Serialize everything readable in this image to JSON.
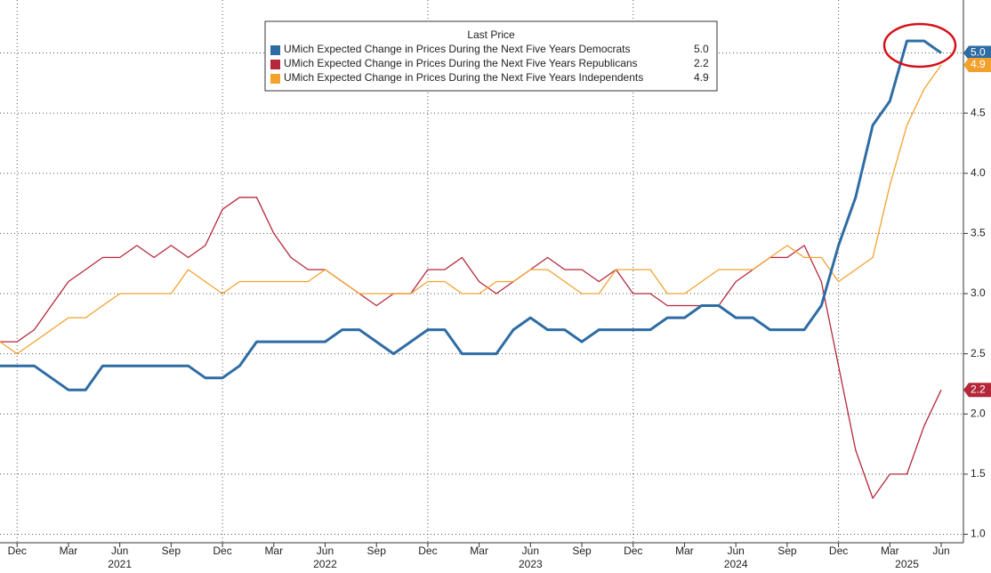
{
  "chart_data": {
    "type": "line",
    "legend_title": "Last Price",
    "legend_position": "top-center",
    "x": [
      "2020-11",
      "2020-12",
      "2021-01",
      "2021-02",
      "2021-03",
      "2021-04",
      "2021-05",
      "2021-06",
      "2021-07",
      "2021-08",
      "2021-09",
      "2021-10",
      "2021-11",
      "2021-12",
      "2022-01",
      "2022-02",
      "2022-03",
      "2022-04",
      "2022-05",
      "2022-06",
      "2022-07",
      "2022-08",
      "2022-09",
      "2022-10",
      "2022-11",
      "2022-12",
      "2023-01",
      "2023-02",
      "2023-03",
      "2023-04",
      "2023-05",
      "2023-06",
      "2023-07",
      "2023-08",
      "2023-09",
      "2023-10",
      "2023-11",
      "2023-12",
      "2024-01",
      "2024-02",
      "2024-03",
      "2024-04",
      "2024-05",
      "2024-06",
      "2024-07",
      "2024-08",
      "2024-09",
      "2024-10",
      "2024-11",
      "2024-12",
      "2025-01",
      "2025-02",
      "2025-03",
      "2025-04",
      "2025-05",
      "2025-06"
    ],
    "series": [
      {
        "name": "UMich Expected Change in Prices During the Next Five Years Democrats",
        "color": "#2e6ca4",
        "width": 3,
        "last_label": "5.0",
        "values": [
          2.4,
          2.4,
          2.4,
          2.3,
          2.2,
          2.2,
          2.4,
          2.4,
          2.4,
          2.4,
          2.4,
          2.4,
          2.3,
          2.3,
          2.4,
          2.6,
          2.6,
          2.6,
          2.6,
          2.6,
          2.7,
          2.7,
          2.6,
          2.5,
          2.6,
          2.7,
          2.7,
          2.5,
          2.5,
          2.5,
          2.7,
          2.8,
          2.7,
          2.7,
          2.6,
          2.7,
          2.7,
          2.7,
          2.7,
          2.8,
          2.8,
          2.9,
          2.9,
          2.8,
          2.8,
          2.7,
          2.7,
          2.7,
          2.9,
          3.4,
          3.8,
          4.4,
          4.6,
          5.1,
          5.1,
          5.0
        ]
      },
      {
        "name": "UMich Expected Change in Prices During the Next Five Years Republicans",
        "color": "#b5283a",
        "width": 1.3,
        "last_label": "2.2",
        "values": [
          2.6,
          2.6,
          2.7,
          2.9,
          3.1,
          3.2,
          3.3,
          3.3,
          3.4,
          3.3,
          3.4,
          3.3,
          3.4,
          3.7,
          3.8,
          3.8,
          3.5,
          3.3,
          3.2,
          3.2,
          3.1,
          3.0,
          2.9,
          3.0,
          3.0,
          3.2,
          3.2,
          3.3,
          3.1,
          3.0,
          3.1,
          3.2,
          3.3,
          3.2,
          3.2,
          3.1,
          3.2,
          3.0,
          3.0,
          2.9,
          2.9,
          2.9,
          2.9,
          3.1,
          3.2,
          3.3,
          3.3,
          3.4,
          3.1,
          2.4,
          1.7,
          1.3,
          1.5,
          1.5,
          1.9,
          2.2
        ]
      },
      {
        "name": "UMich Expected Change in Prices During the Next Five Years Independents",
        "color": "#f2a22c",
        "width": 1.3,
        "last_label": "4.9",
        "values": [
          2.6,
          2.5,
          2.6,
          2.7,
          2.8,
          2.8,
          2.9,
          3.0,
          3.0,
          3.0,
          3.0,
          3.2,
          3.1,
          3.0,
          3.1,
          3.1,
          3.1,
          3.1,
          3.1,
          3.2,
          3.1,
          3.0,
          3.0,
          3.0,
          3.0,
          3.1,
          3.1,
          3.0,
          3.0,
          3.1,
          3.1,
          3.2,
          3.2,
          3.1,
          3.0,
          3.0,
          3.2,
          3.2,
          3.2,
          3.0,
          3.0,
          3.1,
          3.2,
          3.2,
          3.2,
          3.3,
          3.4,
          3.3,
          3.3,
          3.1,
          3.2,
          3.3,
          3.9,
          4.4,
          4.7,
          4.9
        ]
      }
    ],
    "xticks": [
      {
        "value": "2020-12",
        "label": "Dec"
      },
      {
        "value": "2021-03",
        "label": "Mar"
      },
      {
        "value": "2021-06",
        "label": "Jun"
      },
      {
        "value": "2021-09",
        "label": "Sep"
      },
      {
        "value": "2021-12",
        "label": "Dec"
      },
      {
        "value": "2022-03",
        "label": "Mar"
      },
      {
        "value": "2022-06",
        "label": "Jun"
      },
      {
        "value": "2022-09",
        "label": "Sep"
      },
      {
        "value": "2022-12",
        "label": "Dec"
      },
      {
        "value": "2023-03",
        "label": "Mar"
      },
      {
        "value": "2023-06",
        "label": "Jun"
      },
      {
        "value": "2023-09",
        "label": "Sep"
      },
      {
        "value": "2023-12",
        "label": "Dec"
      },
      {
        "value": "2024-03",
        "label": "Mar"
      },
      {
        "value": "2024-06",
        "label": "Jun"
      },
      {
        "value": "2024-09",
        "label": "Sep"
      },
      {
        "value": "2024-12",
        "label": "Dec"
      },
      {
        "value": "2025-03",
        "label": "Mar"
      },
      {
        "value": "2025-06",
        "label": "Jun"
      }
    ],
    "year_labels": [
      {
        "value": "2021-06",
        "label": "2021"
      },
      {
        "value": "2022-06",
        "label": "2022"
      },
      {
        "value": "2023-06",
        "label": "2023"
      },
      {
        "value": "2024-06",
        "label": "2024"
      },
      {
        "value": "2025-04",
        "label": "2025"
      }
    ],
    "ylim": [
      0.93,
      5.44
    ],
    "yticks": [
      {
        "value": 1.0,
        "label": "1.0"
      },
      {
        "value": 1.5,
        "label": "1.5"
      },
      {
        "value": 2.0,
        "label": "2.0"
      },
      {
        "value": 2.5,
        "label": "2.5"
      },
      {
        "value": 3.0,
        "label": "3.0"
      },
      {
        "value": 3.5,
        "label": "3.5"
      },
      {
        "value": 4.0,
        "label": "4.0"
      },
      {
        "value": 4.5,
        "label": "4.5"
      },
      {
        "value": 5.0,
        "label": "5.0"
      }
    ],
    "grid": true
  }
}
